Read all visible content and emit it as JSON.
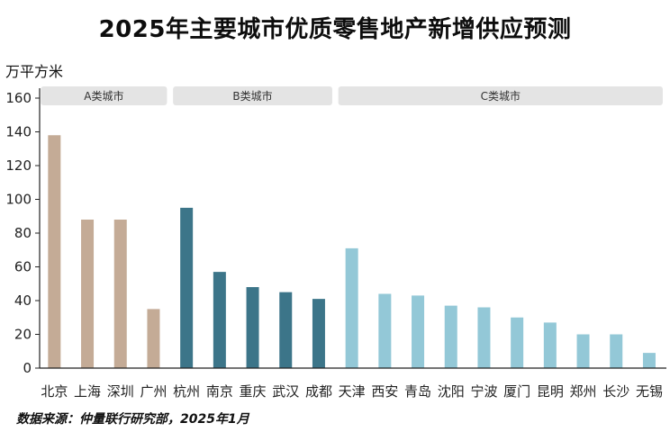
{
  "title": "2025年主要城市优质零售地产新增供应预测",
  "source": "数据来源：仲量联行研究部，2025年1月",
  "colors": {
    "A类城市": "#c4ab96",
    "B类城市": "#3c7589",
    "C类城市": "#93c8d7",
    "group_band": "#e4e4e4",
    "axis": "#222222"
  },
  "chart_data": {
    "type": "bar",
    "title": "2025年主要城市优质零售地产新增供应预测",
    "ylabel": "万平方米",
    "xlabel": "",
    "ylim": [
      0,
      160
    ],
    "yticks": [
      0,
      20,
      40,
      60,
      80,
      100,
      120,
      140,
      160
    ],
    "grid": false,
    "categories": [
      "北京",
      "上海",
      "深圳",
      "广州",
      "杭州",
      "南京",
      "重庆",
      "武汉",
      "成都",
      "天津",
      "西安",
      "青岛",
      "沈阳",
      "宁波",
      "厦门",
      "昆明",
      "郑州",
      "长沙",
      "无锡"
    ],
    "values": [
      138,
      88,
      88,
      35,
      95,
      57,
      48,
      45,
      41,
      71,
      44,
      43,
      37,
      36,
      30,
      27,
      20,
      20,
      9
    ],
    "groups": [
      {
        "name": "A类城市",
        "start": 0,
        "end": 3
      },
      {
        "name": "B类城市",
        "start": 4,
        "end": 8
      },
      {
        "name": "C类城市",
        "start": 9,
        "end": 18
      }
    ]
  }
}
